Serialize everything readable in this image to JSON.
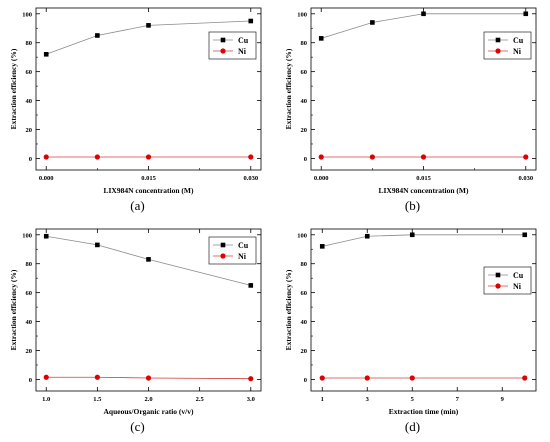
{
  "colors": {
    "cu": "#000000",
    "ni": "#e00000",
    "cu_line": "#8a8a8a",
    "ni_line": "#d04040"
  },
  "chart_data": [
    {
      "id": "a",
      "type": "line",
      "caption": "(a)",
      "xlabel": "LIX984N concentration (M)",
      "ylabel": "Extraction efficiency (%)",
      "xlim": [
        -0.0015,
        0.0315
      ],
      "ylim": [
        -8,
        104
      ],
      "xticks": [
        0.0,
        0.015,
        0.03
      ],
      "xticklabels": [
        "0.000",
        "0.015",
        "0.030"
      ],
      "xminor": [
        0.0075,
        0.0225
      ],
      "yticks": [
        0,
        20,
        40,
        60,
        80,
        100
      ],
      "yticklabels": [
        "0",
        "20",
        "40",
        "60",
        "80",
        "100"
      ],
      "legend": "right-upper",
      "series": [
        {
          "name": "Cu",
          "marker": "square",
          "x": [
            0.0,
            0.0075,
            0.015,
            0.03
          ],
          "y": [
            72,
            85,
            92,
            95
          ]
        },
        {
          "name": "Ni",
          "marker": "circle",
          "x": [
            0.0,
            0.0075,
            0.015,
            0.03
          ],
          "y": [
            1,
            1,
            1,
            1
          ]
        }
      ]
    },
    {
      "id": "b",
      "type": "line",
      "caption": "(b)",
      "xlabel": "LIX984N concentration (M)",
      "ylabel": "Extraction efficiency (%)",
      "xlim": [
        -0.0015,
        0.0315
      ],
      "ylim": [
        -8,
        104
      ],
      "xticks": [
        0.0,
        0.015,
        0.03
      ],
      "xticklabels": [
        "0.000",
        "0.015",
        "0.030"
      ],
      "xminor": [
        0.0075,
        0.0225
      ],
      "yticks": [
        0,
        20,
        40,
        60,
        80,
        100
      ],
      "yticklabels": [
        "0",
        "20",
        "40",
        "60",
        "80",
        "100"
      ],
      "legend": "right-upper",
      "series": [
        {
          "name": "Cu",
          "marker": "square",
          "x": [
            0.0,
            0.0075,
            0.015,
            0.03
          ],
          "y": [
            83,
            94,
            100,
            100
          ]
        },
        {
          "name": "Ni",
          "marker": "circle",
          "x": [
            0.0,
            0.0075,
            0.015,
            0.03
          ],
          "y": [
            1,
            1,
            1,
            1
          ]
        }
      ]
    },
    {
      "id": "c",
      "type": "line",
      "caption": "(c)",
      "xlabel": "Aqueous/Organic ratio (v/v)",
      "ylabel": "Extraction efficiency (%)",
      "xlim": [
        0.9,
        3.1
      ],
      "ylim": [
        -8,
        104
      ],
      "xticks": [
        1.0,
        1.5,
        2.0,
        2.5,
        3.0
      ],
      "xticklabels": [
        "1.0",
        "1.5",
        "2.0",
        "2.5",
        "3.0"
      ],
      "xminor": [],
      "yticks": [
        0,
        20,
        40,
        60,
        80,
        100
      ],
      "yticklabels": [
        "0",
        "20",
        "40",
        "60",
        "80",
        "100"
      ],
      "legend": "right-top",
      "series": [
        {
          "name": "Cu",
          "marker": "square",
          "x": [
            1.0,
            1.5,
            2.0,
            3.0
          ],
          "y": [
            99,
            93,
            83,
            65
          ]
        },
        {
          "name": "Ni",
          "marker": "circle",
          "x": [
            1.0,
            1.5,
            2.0,
            3.0
          ],
          "y": [
            1.5,
            1.5,
            1,
            0.5
          ]
        }
      ]
    },
    {
      "id": "d",
      "type": "line",
      "caption": "(d)",
      "xlabel": "Extraction time (min)",
      "ylabel": "Extraction efficiency (%)",
      "xlim": [
        0.5,
        10.5
      ],
      "ylim": [
        -8,
        104
      ],
      "xticks": [
        1,
        3,
        5,
        7,
        9
      ],
      "xticklabels": [
        "1",
        "3",
        "5",
        "7",
        "9"
      ],
      "xminor": [],
      "yticks": [
        0,
        20,
        40,
        60,
        80,
        100
      ],
      "yticklabels": [
        "0",
        "20",
        "40",
        "60",
        "80",
        "100"
      ],
      "legend": "right-middle",
      "series": [
        {
          "name": "Cu",
          "marker": "square",
          "x": [
            1,
            3,
            5,
            10
          ],
          "y": [
            92,
            99,
            100,
            100
          ]
        },
        {
          "name": "Ni",
          "marker": "circle",
          "x": [
            1,
            3,
            5,
            10
          ],
          "y": [
            1,
            1,
            1,
            1
          ]
        }
      ]
    }
  ]
}
